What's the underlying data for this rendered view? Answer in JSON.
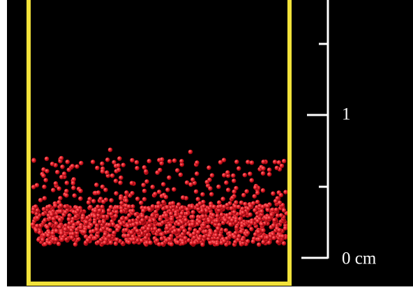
{
  "scale": {
    "labels": [
      "1",
      "0 cm"
    ]
  }
}
